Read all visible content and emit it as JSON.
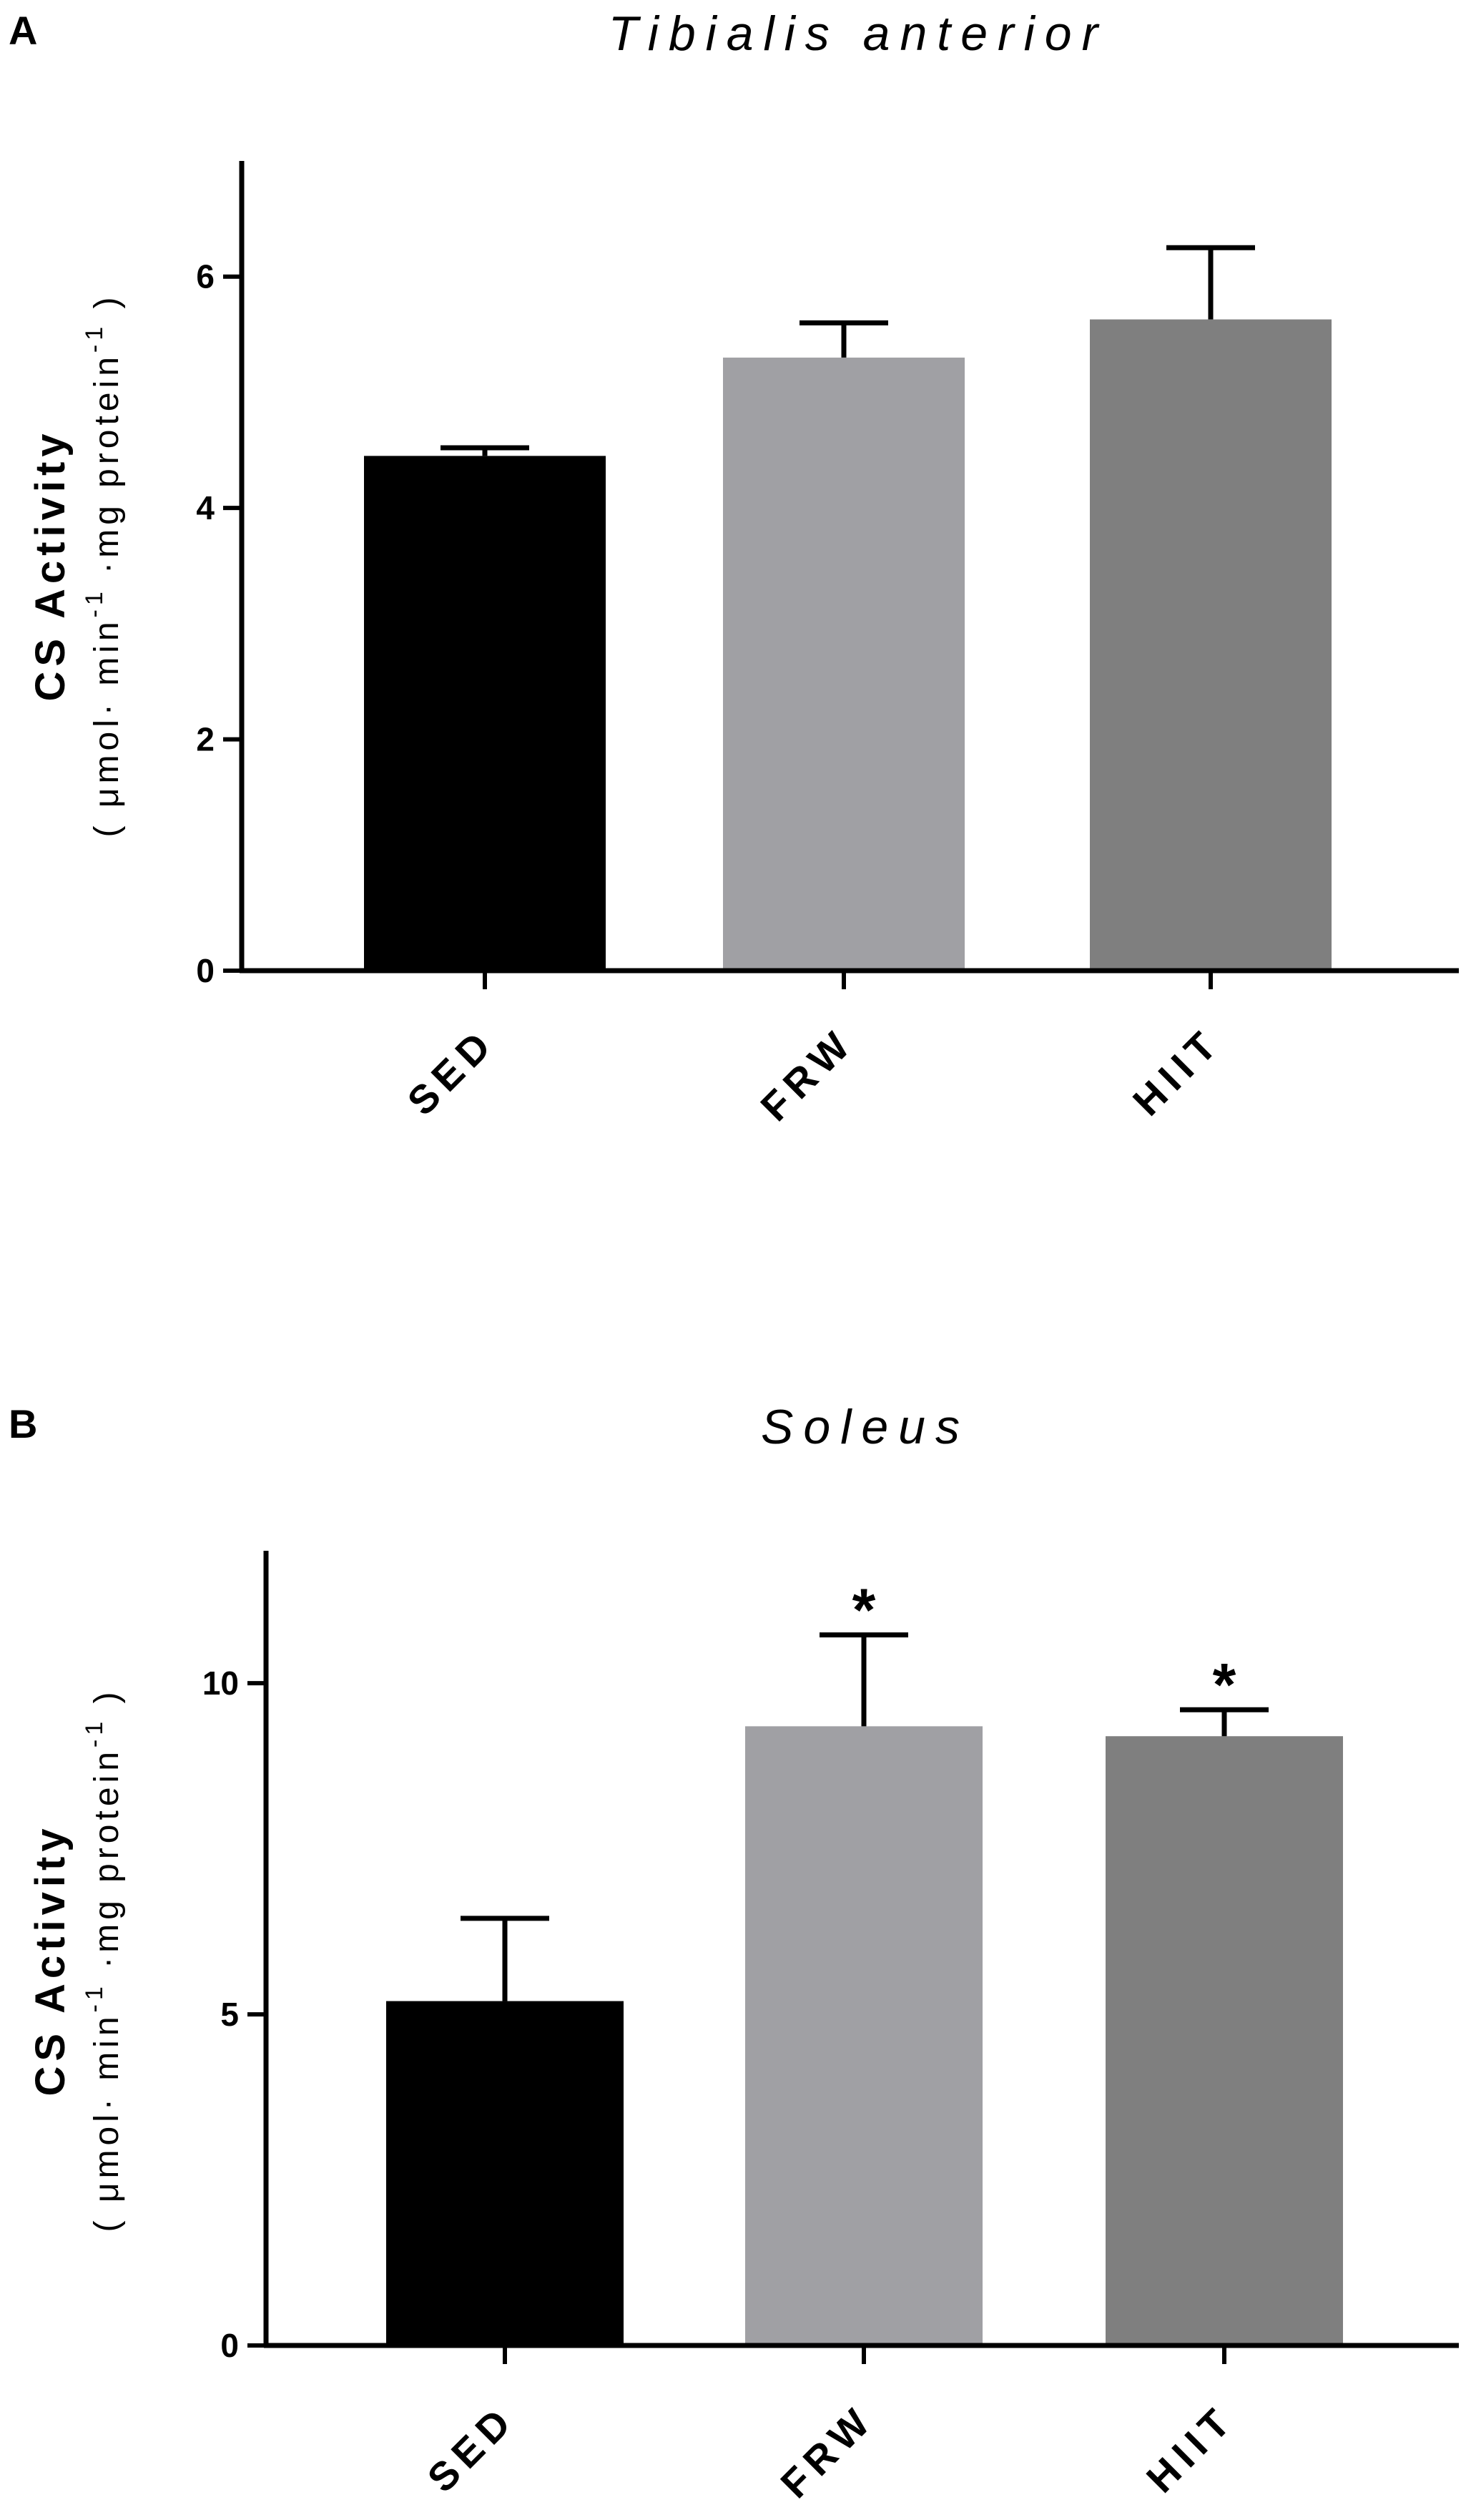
{
  "chart_data": [
    {
      "panel": "A",
      "type": "bar",
      "title": "Tibialis anterior",
      "ylabel": "CS Activity",
      "ylabel_units": {
        "open": "(",
        "umol": "μmol·",
        "min": "min",
        "exp1": "-1",
        "mid": "·mg",
        "protein": "protein",
        "exp2": "-1",
        "close": ")"
      },
      "categories": [
        "SED",
        "FRW",
        "HIIT"
      ],
      "values": [
        4.45,
        5.3,
        5.63
      ],
      "errors": [
        0.07,
        0.3,
        0.62
      ],
      "colors": [
        "#000000",
        "#a0a0a4",
        "#7f7f7f"
      ],
      "significance": [
        "",
        "",
        ""
      ],
      "ylim": [
        0,
        7
      ],
      "yticks": [
        0,
        2,
        4,
        6
      ]
    },
    {
      "panel": "B",
      "type": "bar",
      "title": "Soleus",
      "ylabel": "CS Activity",
      "ylabel_units": {
        "open": "(",
        "umol": "μmol·",
        "min": "min",
        "exp1": "-1",
        "mid": "·mg",
        "protein": "protein",
        "exp2": "-1",
        "close": ")"
      },
      "categories": [
        "SED",
        "FRW",
        "HIIT"
      ],
      "values": [
        5.2,
        9.35,
        9.2
      ],
      "errors": [
        1.25,
        1.38,
        0.4
      ],
      "colors": [
        "#000000",
        "#a0a0a4",
        "#7f7f7f"
      ],
      "significance": [
        "",
        "*",
        "*"
      ],
      "ylim": [
        0,
        12
      ],
      "yticks": [
        0,
        5,
        10
      ]
    }
  ]
}
